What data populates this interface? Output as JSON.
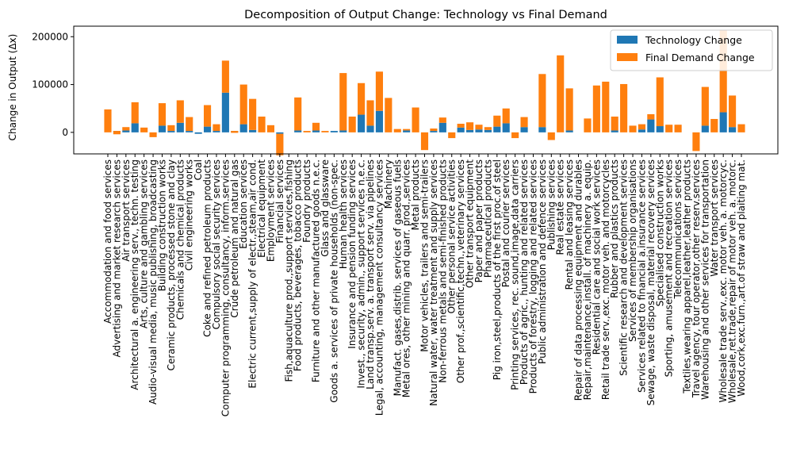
{
  "chart_data": {
    "type": "bar",
    "stacked": true,
    "title": "Decomposition of Output Change: Technology vs Final Demand",
    "ylabel": "Change in Output (Δx)",
    "xlabel": "",
    "ylim": [
      -45000,
      222000
    ],
    "yticks": [
      0,
      100000,
      200000
    ],
    "legend": "top-right",
    "grid": false,
    "colors": {
      "technology": "#1f77b4",
      "final_demand": "#ff7f0e"
    },
    "series": [
      {
        "name": "Technology Change"
      },
      {
        "name": "Final Demand Change"
      }
    ],
    "categories": [
      "Accommodation and food services",
      "Advertising and market research services",
      "Air transport services",
      "Architectural a. engineering serv., techn. testing",
      "Arts, culture and gambling services",
      "Audio-visual media, music publishing, broadcasting",
      "Building construction works",
      "Ceramic products, processed stone and clay",
      "Chemicals and chemical products",
      "Civil engineering works",
      "Coal",
      "Coke and refined petroleum products",
      "Compulsory social security services",
      "Computer programming, consultancy, inform.services",
      "Crude petroleum and natural gas",
      "Education services",
      "Electric current,supply of electr.,steam,air cond.",
      "Electrical equipment",
      "Employment services",
      "Financial services",
      "Fish,aquaculture prod.,support services,fishing",
      "Food products, beverages, tobacco products",
      "Foundry products",
      "Furniture and other manufactured goods n.e.c.",
      "Glass and glassware",
      "Goods a. services of private households (non-spec.",
      "Human health services",
      "Insurance and pension funding services",
      "Invest., security, admin., support services n.e.c.",
      "Land transp.serv. a. transport serv. via pipelines",
      "Legal, accounting, management consultancy services",
      "Machinery",
      "Manufact. gases,distrib. services of gaseous fuels",
      "Metal ores, other mining and quarr. prod.,services",
      "Metal products",
      "Motor vehicles, trailers and semi-trailers",
      "Natural water, water treatment and supply services",
      "Non-ferrous metals and semi-finished products",
      "Other personal service activities",
      "Other prof.,scientific,techn.,veterinary services",
      "Other transport equipment",
      "Paper and paper products",
      "Pharmaceutical products",
      "Pig iron,steel,products of the first proc.of steel",
      "Postal and courier services",
      "Printing services, rec. sound,image,data carriers",
      "Products of agric., hunting and related services",
      "Products of forestry, logging and related services",
      "Public administration and defence services",
      "Publishing services",
      "Real estate services",
      "Rental and leasing services",
      "Repair of data processing equipment and durables",
      "Repair,maintenance,install. of machinery a. equip.",
      "Residential care and social work services",
      "Retail trade serv.,exc. motor veh. and motorcycles",
      "Rubber and plastics products",
      "Scientific research and development services",
      "Services of membership organisations",
      "Services related to financial a.insurance services",
      "Sewage, waste disposal, material recovery services",
      "Specialised construction works",
      "Sporting, amusement and recreation services",
      "Telecommunications services",
      "Textiles,wearing apparel,leather,leather products",
      "Travel agency, tour operator,other reserv.services",
      "Warehousing and other services for transportation",
      "Water transport services",
      "Wholesale trade serv.,exc. motor veh. a. motorcyc.",
      "Wholesale,ret.trade,repair of motor veh. a. motorc.",
      "Wood,cork,exc.furn.,art.of straw and plaiting mat."
    ],
    "technology": [
      0,
      3000,
      4000,
      19000,
      0,
      0,
      14000,
      3000,
      20000,
      3000,
      -3000,
      12000,
      3000,
      83000,
      3000,
      17000,
      5000,
      0,
      0,
      -3000,
      0,
      4000,
      0,
      4000,
      0,
      3000,
      4000,
      0,
      37000,
      14000,
      45000,
      0,
      0,
      4000,
      0,
      0,
      3000,
      20000,
      0,
      10000,
      5000,
      6000,
      5000,
      12000,
      19000,
      0,
      11000,
      0,
      11000,
      0,
      0,
      4000,
      0,
      0,
      0,
      0,
      4000,
      0,
      0,
      6000,
      27000,
      13000,
      0,
      0,
      0,
      0,
      14000,
      0,
      42000,
      11000,
      0
    ],
    "final_demand": [
      48000,
      -7000,
      7000,
      44000,
      10000,
      -10000,
      47000,
      12000,
      47000,
      29000,
      0,
      45000,
      14000,
      67000,
      -4000,
      83000,
      65000,
      33000,
      15000,
      -45000,
      0,
      69000,
      3000,
      16000,
      3000,
      0,
      120000,
      33000,
      66000,
      53000,
      82000,
      72000,
      7000,
      3000,
      52000,
      -37000,
      5000,
      11000,
      -12000,
      8000,
      16000,
      10000,
      6000,
      23000,
      31000,
      -12000,
      21000,
      0,
      111000,
      -16000,
      161000,
      88000,
      0,
      29000,
      98000,
      106000,
      29000,
      101000,
      14000,
      11000,
      11000,
      102000,
      16000,
      16000,
      0,
      -39000,
      81000,
      28000,
      171000,
      66000,
      17000
    ]
  }
}
